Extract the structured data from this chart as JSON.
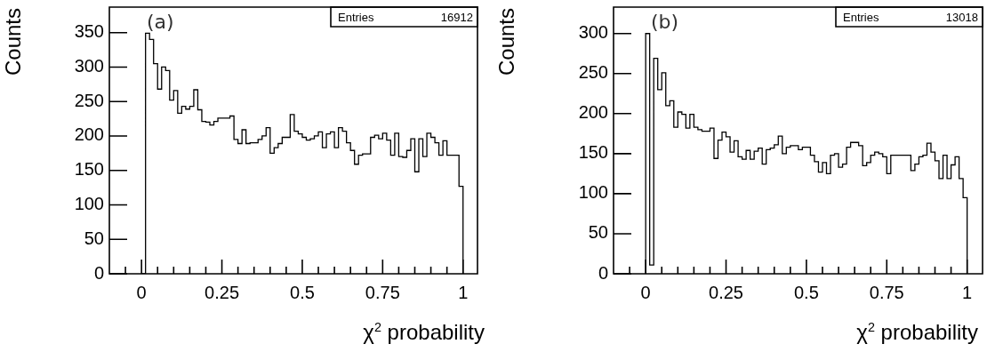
{
  "chart_data": [
    {
      "type": "histogram",
      "xlabel": "χ$^{2}$ probability",
      "ylabel": "Counts",
      "annotations": [
        "(a)",
        "Entries",
        "16912"
      ],
      "bins": [
        0,
        0.0125,
        0.025,
        0.0375,
        0.05,
        0.0625,
        0.075,
        0.0875,
        0.1,
        0.1125,
        0.125,
        0.1375,
        0.15,
        0.1625,
        0.175,
        0.1875,
        0.2,
        0.2125,
        0.225,
        0.2375,
        0.25,
        0.2625,
        0.275,
        0.2875,
        0.3,
        0.3125,
        0.325,
        0.3375,
        0.35,
        0.3625,
        0.375,
        0.3875,
        0.4,
        0.4125,
        0.425,
        0.4375,
        0.45,
        0.4625,
        0.475,
        0.4875,
        0.5,
        0.5125,
        0.525,
        0.5375,
        0.55,
        0.5625,
        0.575,
        0.5875,
        0.6,
        0.6125,
        0.625,
        0.6375,
        0.65,
        0.6625,
        0.675,
        0.6875,
        0.7,
        0.7125,
        0.725,
        0.7375,
        0.75,
        0.7625,
        0.775,
        0.7875,
        0.8,
        0.8125,
        0.825,
        0.8375,
        0.85,
        0.8625,
        0.875,
        0.8875,
        0.9,
        0.9125,
        0.925,
        0.9375,
        0.95,
        0.9625,
        0.975,
        0.9875,
        1
      ],
      "values": [
        0,
        349,
        340,
        305,
        268,
        300,
        295,
        252,
        266,
        233,
        243,
        239,
        243,
        267,
        238,
        221,
        220,
        216,
        221,
        226,
        226,
        226,
        229,
        195,
        189,
        209,
        189,
        190,
        190,
        195,
        200,
        212,
        175,
        183,
        189,
        198,
        198,
        231,
        207,
        203,
        198,
        194,
        196,
        200,
        206,
        183,
        203,
        206,
        183,
        212,
        207,
        190,
        179,
        159,
        172,
        174,
        174,
        198,
        201,
        196,
        204,
        194,
        172,
        204,
        170,
        169,
        179,
        196,
        148,
        196,
        170,
        204,
        198,
        190,
        172,
        193,
        172,
        172,
        172,
        127
      ],
      "color": "#000000",
      "xlim": [
        -0.1,
        1.045
      ],
      "ylim": [
        0,
        387
      ],
      "grid": false,
      "legend": false,
      "xticks": [
        {
          "value": -0.05,
          "label": null
        },
        0,
        {
          "value": 0.05,
          "label": null
        },
        {
          "value": 0.1,
          "label": null
        },
        {
          "value": 0.15,
          "label": null
        },
        {
          "value": 0.2,
          "label": null
        },
        0.25,
        {
          "value": 0.3,
          "label": null
        },
        {
          "value": 0.35,
          "label": null
        },
        {
          "value": 0.4,
          "label": null
        },
        {
          "value": 0.45,
          "label": null
        },
        0.5,
        {
          "value": 0.55,
          "label": null
        },
        {
          "value": 0.6,
          "label": null
        },
        {
          "value": 0.65,
          "label": null
        },
        {
          "value": 0.7,
          "label": null
        },
        0.75,
        {
          "value": 0.8,
          "label": null
        },
        {
          "value": 0.85,
          "label": null
        },
        {
          "value": 0.9,
          "label": null
        },
        {
          "value": 0.95,
          "label": null
        },
        1
      ],
      "yticks": [
        0,
        50,
        100,
        150,
        200,
        250,
        300,
        350
      ]
    },
    {
      "type": "histogram",
      "xlabel": "χ$^{2}$ probability",
      "ylabel": "Counts",
      "annotations": [
        "(b)",
        "Entries",
        "13018"
      ],
      "bins": [
        0,
        0.0125,
        0.025,
        0.0375,
        0.05,
        0.0625,
        0.075,
        0.0875,
        0.1,
        0.1125,
        0.125,
        0.1375,
        0.15,
        0.1625,
        0.175,
        0.1875,
        0.2,
        0.2125,
        0.225,
        0.2375,
        0.25,
        0.2625,
        0.275,
        0.2875,
        0.3,
        0.3125,
        0.325,
        0.3375,
        0.35,
        0.3625,
        0.375,
        0.3875,
        0.4,
        0.4125,
        0.425,
        0.4375,
        0.45,
        0.4625,
        0.475,
        0.4875,
        0.5,
        0.5125,
        0.525,
        0.5375,
        0.55,
        0.5625,
        0.575,
        0.5875,
        0.6,
        0.6125,
        0.625,
        0.6375,
        0.65,
        0.6625,
        0.675,
        0.6875,
        0.7,
        0.7125,
        0.725,
        0.7375,
        0.75,
        0.7625,
        0.775,
        0.7875,
        0.8,
        0.8125,
        0.825,
        0.8375,
        0.85,
        0.8625,
        0.875,
        0.8875,
        0.9,
        0.9125,
        0.925,
        0.9375,
        0.95,
        0.9625,
        0.975,
        0.9875,
        1
      ],
      "values": [
        300,
        11,
        269,
        230,
        251,
        210,
        216,
        183,
        202,
        199,
        182,
        199,
        183,
        180,
        178,
        178,
        182,
        144,
        167,
        177,
        171,
        152,
        166,
        146,
        143,
        154,
        143,
        153,
        157,
        137,
        155,
        157,
        161,
        172,
        150,
        158,
        160,
        160,
        155,
        158,
        158,
        148,
        140,
        127,
        139,
        125,
        148,
        150,
        133,
        137,
        158,
        164,
        164,
        160,
        135,
        139,
        148,
        152,
        150,
        146,
        125,
        148,
        148,
        148,
        148,
        148,
        129,
        137,
        146,
        148,
        163,
        152,
        141,
        119,
        148,
        119,
        136,
        146,
        119,
        95
      ],
      "color": "#000000",
      "xlim": [
        -0.1,
        1.048
      ],
      "ylim": [
        0,
        333
      ],
      "grid": false,
      "legend": false,
      "xticks": [
        {
          "value": -0.05,
          "label": null
        },
        0,
        {
          "value": 0.05,
          "label": null
        },
        {
          "value": 0.1,
          "label": null
        },
        {
          "value": 0.15,
          "label": null
        },
        {
          "value": 0.2,
          "label": null
        },
        0.25,
        {
          "value": 0.3,
          "label": null
        },
        {
          "value": 0.35,
          "label": null
        },
        {
          "value": 0.4,
          "label": null
        },
        {
          "value": 0.45,
          "label": null
        },
        0.5,
        {
          "value": 0.55,
          "label": null
        },
        {
          "value": 0.6,
          "label": null
        },
        {
          "value": 0.65,
          "label": null
        },
        {
          "value": 0.7,
          "label": null
        },
        0.75,
        {
          "value": 0.8,
          "label": null
        },
        {
          "value": 0.85,
          "label": null
        },
        {
          "value": 0.9,
          "label": null
        },
        {
          "value": 0.95,
          "label": null
        },
        1
      ],
      "yticks": [
        0,
        50,
        100,
        150,
        200,
        250,
        300
      ]
    }
  ]
}
